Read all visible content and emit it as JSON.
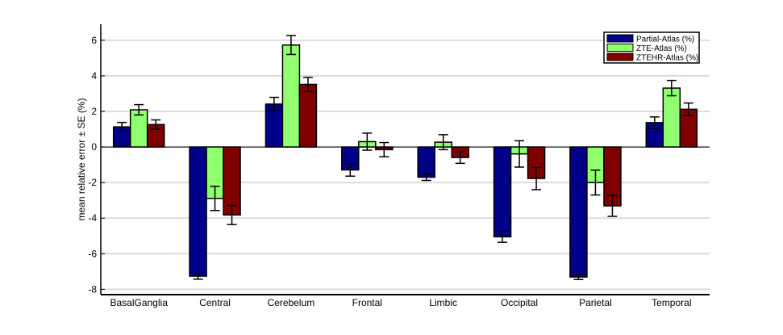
{
  "chart_data": {
    "type": "bar",
    "title": "",
    "xlabel": "",
    "ylabel": "mean relative error ± SE (%)",
    "ylim": [
      -8.3,
      6.9
    ],
    "yticks": [
      -8,
      -6,
      -4,
      -2,
      0,
      2,
      4,
      6
    ],
    "grid": "horizontal",
    "legend_position": "top-right",
    "categories": [
      "BasalGanglia",
      "Central",
      "Cerebelum",
      "Frontal",
      "Limbic",
      "Occipital",
      "Parietal",
      "Temporal"
    ],
    "series": [
      {
        "name": "Partial-Atlas (%)",
        "color": "#00008B",
        "values": [
          1.13,
          -7.26,
          2.41,
          -1.29,
          -1.7,
          -5.05,
          -7.31,
          1.37
        ],
        "errors": [
          0.25,
          0.17,
          0.38,
          0.35,
          0.18,
          0.31,
          0.14,
          0.32
        ]
      },
      {
        "name": "ZTE-Atlas (%)",
        "color": "#90FF70",
        "values": [
          2.09,
          -2.89,
          5.73,
          0.3,
          0.27,
          -0.39,
          -2.0,
          3.31
        ],
        "errors": [
          0.29,
          0.68,
          0.53,
          0.48,
          0.42,
          0.74,
          0.7,
          0.43
        ]
      },
      {
        "name": "ZTEHR-Atlas (%)",
        "color": "#800000",
        "values": [
          1.26,
          -3.82,
          3.52,
          -0.15,
          -0.59,
          -1.77,
          -3.31,
          2.12
        ],
        "errors": [
          0.26,
          0.54,
          0.39,
          0.4,
          0.33,
          0.63,
          0.59,
          0.35
        ]
      }
    ]
  }
}
